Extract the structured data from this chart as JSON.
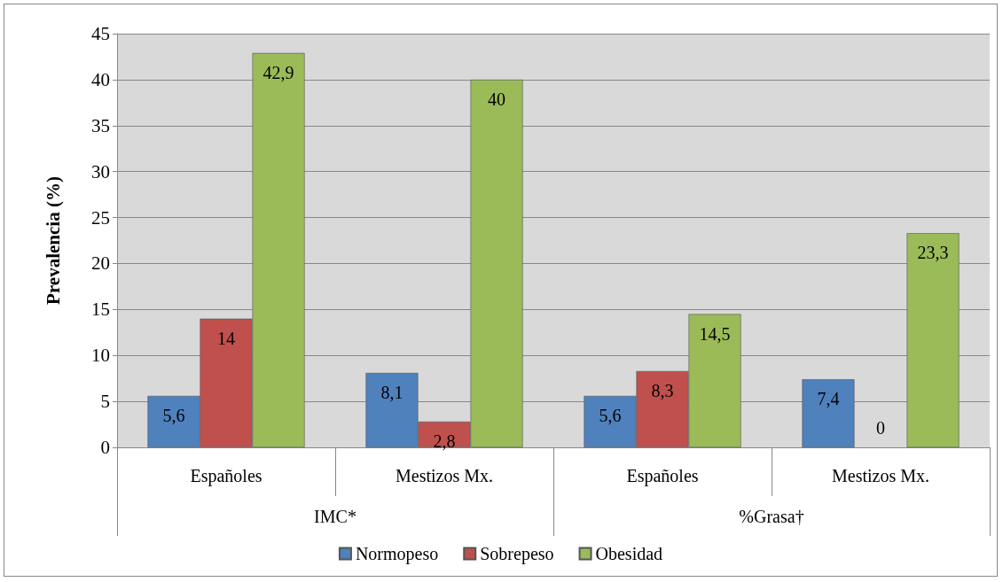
{
  "chart_data": {
    "type": "bar",
    "ylabel": "Prevalencia (%)",
    "categories": [
      "Españoles",
      "Mestizos Mx.",
      "Españoles",
      "Mestizos Mx."
    ],
    "annotations": [
      "IMC*",
      "%Grasa†"
    ],
    "series": [
      {
        "name": "Normopeso",
        "color": "#4f81bd",
        "values": [
          5.6,
          8.1,
          5.6,
          7.4
        ],
        "value_labels": [
          "5,6",
          "8,1",
          "5,6",
          "7,4"
        ]
      },
      {
        "name": "Sobrepeso",
        "color": "#c0504d",
        "values": [
          14,
          2.8,
          8.3,
          0
        ],
        "value_labels": [
          "14",
          "2,8",
          "8,3",
          "0"
        ]
      },
      {
        "name": "Obesidad",
        "color": "#9bbb59",
        "values": [
          42.9,
          40,
          14.5,
          23.3
        ],
        "value_labels": [
          "42,9",
          "40",
          "14,5",
          "23,3"
        ]
      }
    ],
    "ylim": [
      0,
      45
    ],
    "yticks": [
      0,
      5,
      10,
      15,
      20,
      25,
      30,
      35,
      40,
      45
    ],
    "grid": "y",
    "legend": "bottom"
  }
}
